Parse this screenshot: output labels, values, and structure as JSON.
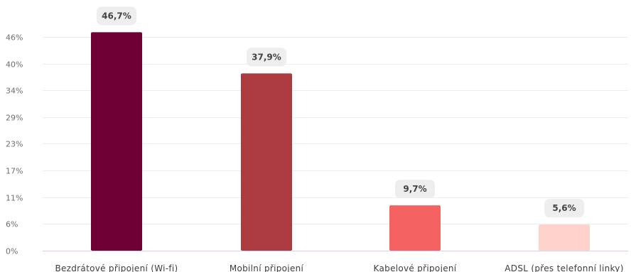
{
  "chart_data": {
    "type": "bar",
    "categories": [
      "Bezdrátové připojení (Wi-fi)",
      "Mobilní připojení",
      "Kabelové připojení",
      "ADSL (přes telefonní linky)"
    ],
    "values": [
      46.7,
      37.9,
      9.7,
      5.6
    ],
    "data_labels": [
      "46,7%",
      "37,9%",
      "9,7%",
      "5,6%"
    ],
    "colors": [
      "#6e0036",
      "#ab3b3e",
      "#f46262",
      "#ffd3cc"
    ],
    "y_ticks": [
      0,
      5.8,
      11.4,
      17.1,
      22.9,
      28.6,
      34.3,
      40.0,
      45.7
    ],
    "y_tick_labels": [
      "0%",
      "6%",
      "11%",
      "17%",
      "23%",
      "29%",
      "34%",
      "40%",
      "46%"
    ],
    "ylim": [
      0,
      45.7
    ],
    "title": "",
    "xlabel": "",
    "ylabel": "",
    "grid": true,
    "legend": "none"
  }
}
